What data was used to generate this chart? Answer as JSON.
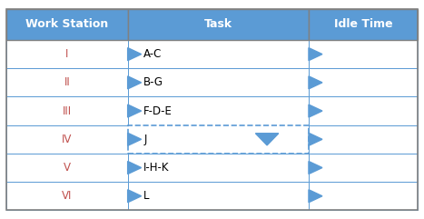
{
  "col_headers": [
    "Work Station",
    "Task",
    "Idle Time"
  ],
  "rows": [
    "I",
    "II",
    "III",
    "IV",
    "V",
    "VI"
  ],
  "tasks": [
    "A-C",
    "B-G",
    "F-D-E",
    "J",
    "I-H-K",
    "L"
  ],
  "header_bg": "#5B9BD5",
  "header_text_color": "#FFFFFF",
  "header_font_weight": "bold",
  "row_bg": "#FFFFFF",
  "idle_col_bg": "#FFFFFF",
  "outer_border_color": "#808080",
  "inner_border_color": "#5B9BD5",
  "workstation_text_color": "#C0504D",
  "task_text_color": "#000000",
  "arrow_color": "#5B9BD5",
  "dashed_row_index": 3,
  "dashed_border_color": "#5B9BD5",
  "figsize": [
    4.67,
    2.41
  ],
  "dpi": 100,
  "font_size": 8.5,
  "header_font_size": 9
}
